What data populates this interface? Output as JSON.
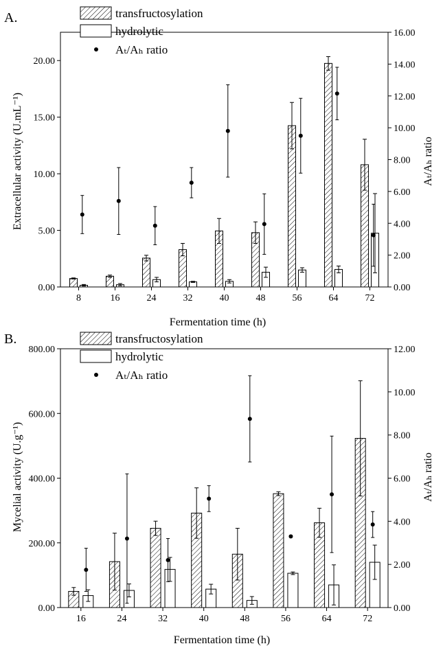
{
  "chart_data": [
    {
      "panel_label": "A.",
      "type": "bar",
      "xlabel": "Fermentation time (h)",
      "ylabel": "Extracellular activity (U.mL⁻¹)",
      "y2label": "Aₜ/Aₕ ratio",
      "categories": [
        "8",
        "16",
        "24",
        "32",
        "40",
        "48",
        "56",
        "64",
        "72"
      ],
      "ylim": [
        0,
        22.5
      ],
      "y_ticks": [
        0,
        5,
        10,
        15,
        20
      ],
      "y_tick_labels": [
        "0.00",
        "5.00",
        "10.00",
        "15.00",
        "20.00"
      ],
      "y2lim": [
        0,
        16
      ],
      "y2_ticks": [
        0,
        2,
        4,
        6,
        8,
        10,
        12,
        14,
        16
      ],
      "y2_tick_labels": [
        "0.00",
        "2.00",
        "4.00",
        "6.00",
        "8.00",
        "10.00",
        "12.00",
        "14.00",
        "16.00"
      ],
      "legend": [
        "transfructosylation",
        "hydrolytic",
        "Aₜ/Aₕ ratio"
      ],
      "legend_placement": "top-left",
      "series": [
        {
          "name": "transfructosylation",
          "kind": "bar-hatched",
          "axis": "left",
          "values": [
            0.75,
            0.95,
            2.55,
            3.3,
            4.95,
            4.8,
            14.25,
            19.75,
            10.8
          ],
          "errors": [
            0.05,
            0.1,
            0.25,
            0.55,
            1.1,
            0.95,
            2.05,
            0.6,
            2.25
          ]
        },
        {
          "name": "hydrolytic",
          "kind": "bar-open",
          "axis": "left",
          "values": [
            0.15,
            0.2,
            0.65,
            0.45,
            0.5,
            1.3,
            1.5,
            1.55,
            4.75
          ],
          "errors": [
            0.07,
            0.1,
            0.2,
            0.05,
            0.15,
            0.45,
            0.2,
            0.3,
            3.5
          ]
        },
        {
          "name": "Aₜ/Aₕ ratio",
          "kind": "scatter",
          "axis": "right",
          "values": [
            4.55,
            5.4,
            3.85,
            6.55,
            9.8,
            3.95,
            9.5,
            12.15,
            3.25
          ],
          "errors": [
            1.2,
            2.1,
            1.2,
            0.95,
            2.9,
            1.9,
            2.35,
            1.65,
            1.95
          ]
        }
      ]
    },
    {
      "panel_label": "B.",
      "type": "bar",
      "xlabel": "Fermentation time (h)",
      "ylabel": "Mycelial activity (U.g⁻¹)",
      "y2label": "Aₜ/Aₕ ratio",
      "categories": [
        "16",
        "24",
        "32",
        "40",
        "48",
        "56",
        "64",
        "72"
      ],
      "ylim": [
        0,
        800
      ],
      "y_ticks": [
        0,
        200,
        400,
        600,
        800
      ],
      "y_tick_labels": [
        "0.00",
        "200.00",
        "400.00",
        "600.00",
        "800.00"
      ],
      "y2lim": [
        0,
        12
      ],
      "y2_ticks": [
        0,
        2,
        4,
        6,
        8,
        10,
        12
      ],
      "y2_tick_labels": [
        "0.00",
        "2.00",
        "4.00",
        "6.00",
        "8.00",
        "10.00",
        "12.00"
      ],
      "legend": [
        "transfructosylation",
        "hydrolytic",
        "Aₜ/Aₕ ratio"
      ],
      "legend_placement": "top-left",
      "series": [
        {
          "name": "transfructosylation",
          "kind": "bar-hatched",
          "axis": "left",
          "values": [
            50,
            142,
            245,
            292,
            165,
            352,
            262,
            523
          ],
          "errors": [
            12,
            88,
            22,
            78,
            80,
            6,
            45,
            178
          ]
        },
        {
          "name": "hydrolytic",
          "kind": "bar-open",
          "axis": "left",
          "values": [
            37,
            53,
            118,
            57,
            22,
            106,
            70,
            140
          ],
          "errors": [
            18,
            20,
            37,
            15,
            12,
            4,
            62,
            53
          ]
        },
        {
          "name": "Aₜ/Aₕ ratio",
          "kind": "scatter",
          "axis": "right",
          "values": [
            1.75,
            3.2,
            2.2,
            5.05,
            8.75,
            3.3,
            5.25,
            3.85
          ],
          "errors": [
            1.0,
            3.0,
            1.0,
            0.6,
            2.0,
            0.05,
            2.7,
            0.6
          ]
        }
      ]
    }
  ]
}
